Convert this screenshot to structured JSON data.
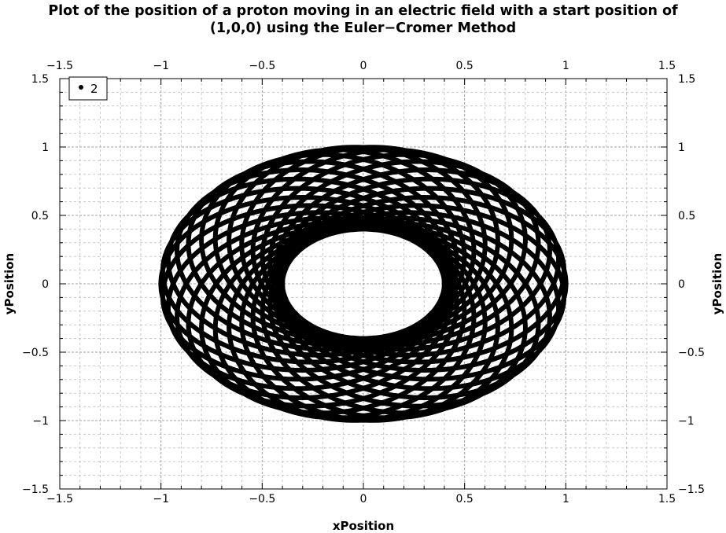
{
  "chart_data": {
    "type": "scatter",
    "title_lines": [
      "Plot of the position of a proton moving in an electric field with a start position of",
      "(1,0,0) using the Euler−Cromer Method"
    ],
    "xlabel": "xPosition",
    "ylabel": "yPosition",
    "xlim": [
      -1.5,
      1.5
    ],
    "ylim": [
      -1.5,
      1.5
    ],
    "x_ticks": [
      "−1.5",
      "−1",
      "−0.5",
      "0",
      "0.5",
      "1",
      "1.5"
    ],
    "y_ticks": [
      "−1.5",
      "−1",
      "−0.5",
      "0",
      "0.5",
      "1",
      "1.5"
    ],
    "grid": true,
    "marker_color": "#000000",
    "legend": {
      "position": "top-left",
      "entries": [
        "2"
      ]
    },
    "series": [
      {
        "name": "2",
        "description": "rosette trajectory (precessing ellipse)",
        "orbit": {
          "semi_major": 0.7,
          "eccentricity": 0.43,
          "lobes": 15
        },
        "x": [
          1.0,
          0.94,
          0.78,
          0.55,
          0.29,
          0.0,
          -0.29,
          -0.55,
          -0.78,
          -0.94,
          -1.0,
          -0.94,
          -0.78,
          -0.55,
          -0.29,
          0.0,
          0.29,
          0.55,
          0.78,
          0.94
        ],
        "y": [
          0.0,
          0.31,
          0.59,
          0.81,
          0.95,
          1.0,
          0.95,
          0.81,
          0.59,
          0.31,
          0.0,
          -0.31,
          -0.59,
          -0.81,
          -0.95,
          -1.0,
          -0.95,
          -0.81,
          -0.59,
          -0.31
        ]
      }
    ]
  }
}
